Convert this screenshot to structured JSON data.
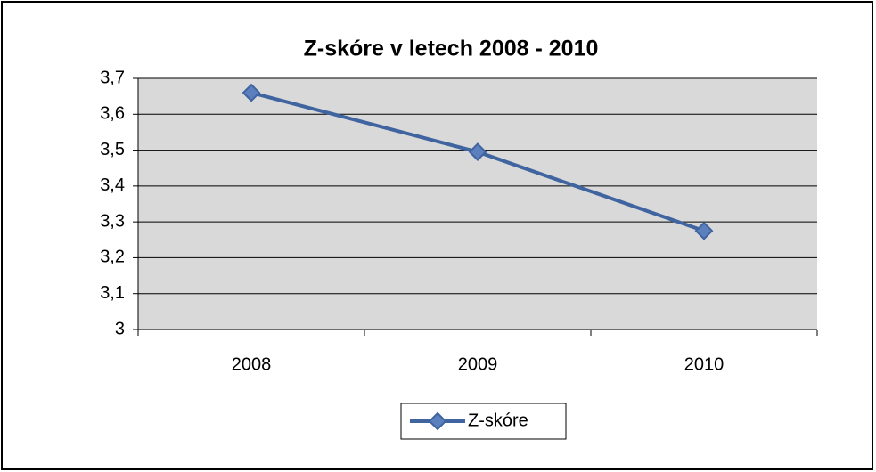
{
  "chart_data": {
    "type": "line",
    "title": "Z-skóre v letech 2008 - 2010",
    "categories": [
      "2008",
      "2009",
      "2010"
    ],
    "series": [
      {
        "name": "Z-skóre",
        "color": "#3f64a0",
        "values": [
          3.66,
          3.495,
          3.275
        ]
      }
    ],
    "ylim": [
      3,
      3.7
    ],
    "yticks": [
      3,
      {
        "value": 3.1,
        "label": "3,1"
      },
      {
        "value": 3.2,
        "label": "3,2"
      },
      {
        "value": 3.3,
        "label": "3,3"
      },
      {
        "value": 3.4,
        "label": "3,4"
      },
      {
        "value": 3.5,
        "label": "3,5"
      },
      {
        "value": 3.6,
        "label": "3,6"
      },
      {
        "value": 3.7,
        "label": "3,7"
      }
    ],
    "grid": true,
    "legend": "bottom"
  }
}
